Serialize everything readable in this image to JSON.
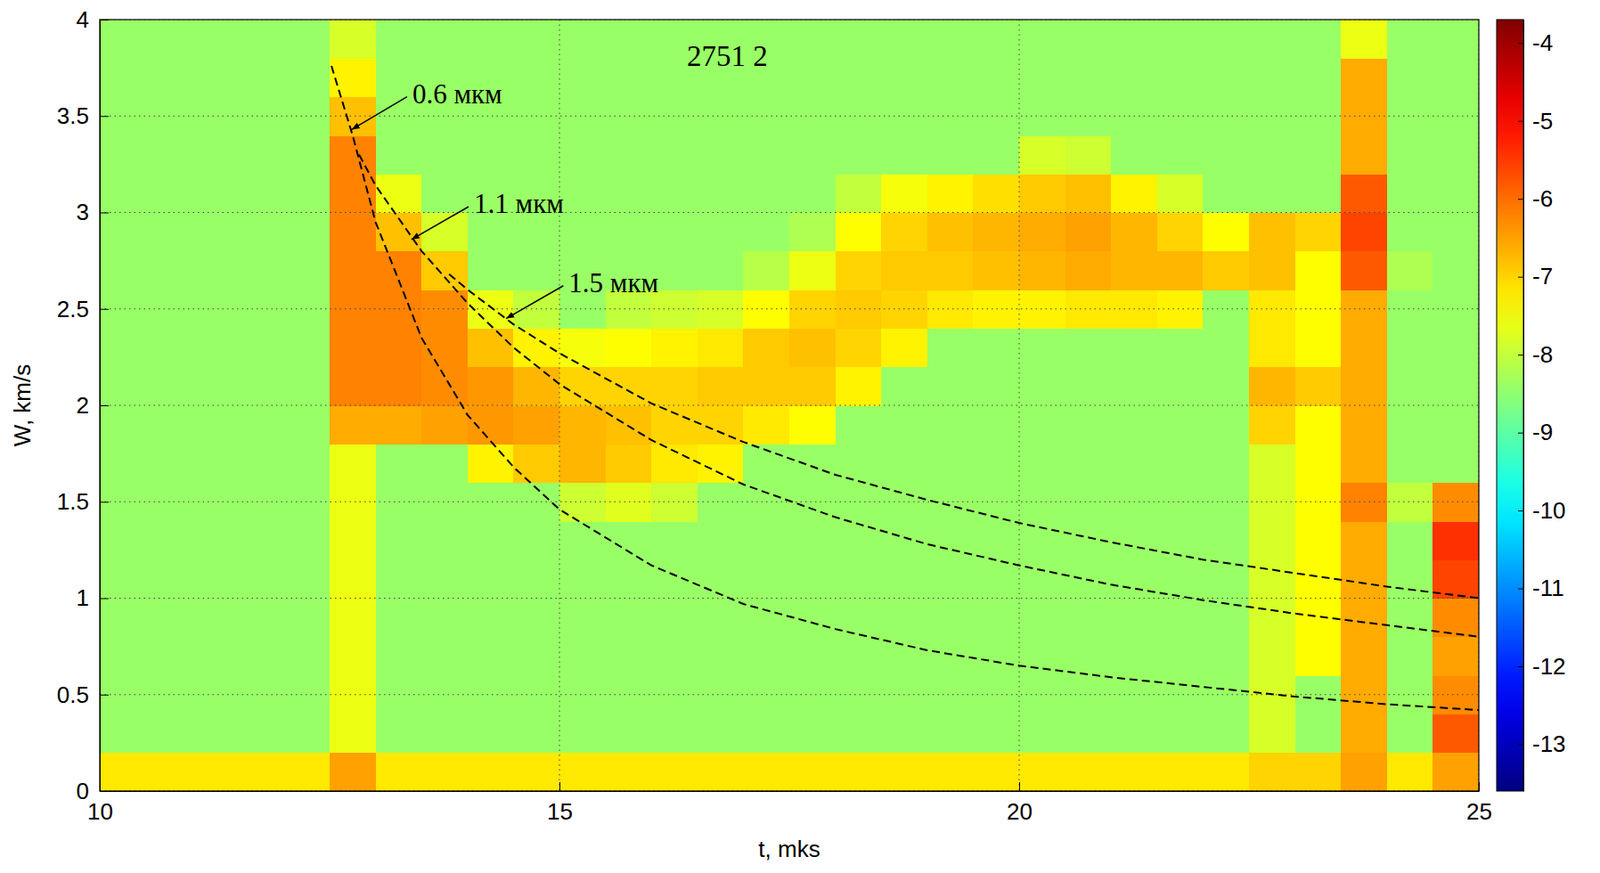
{
  "chart_data": {
    "type": "heatmap",
    "title": "2751 2",
    "x_label": "t, mks",
    "y_label": "W, km/s",
    "xlim": [
      10,
      25
    ],
    "ylim": [
      0,
      4
    ],
    "xticks": [
      10,
      15,
      20,
      25
    ],
    "yticks": [
      0,
      0.5,
      1,
      1.5,
      2,
      2.5,
      3,
      3.5,
      4
    ],
    "grid": true,
    "x": [
      10.25,
      10.75,
      11.25,
      11.75,
      12.25,
      12.75,
      13.25,
      13.75,
      14.25,
      14.75,
      15.25,
      15.75,
      16.25,
      16.75,
      17.25,
      17.75,
      18.25,
      18.75,
      19.25,
      19.75,
      20.25,
      20.75,
      21.25,
      21.75,
      22.25,
      22.75,
      23.25,
      23.75,
      24.25,
      24.75
    ],
    "y": [
      0.1,
      0.3,
      0.5,
      0.7,
      0.9,
      1.1,
      1.3,
      1.5,
      1.7,
      1.9,
      2.1,
      2.3,
      2.5,
      2.7,
      2.9,
      3.1,
      3.3,
      3.5,
      3.7,
      3.9
    ],
    "cells": [
      [
        -7.2,
        -7.2,
        -7.2,
        -7.2,
        -7.2,
        -6.5,
        -7.2,
        -7.2,
        -7.2,
        -7.2,
        -7.2,
        -7.2,
        -7.2,
        -7.2,
        -7.2,
        -7.2,
        -7.2,
        -7.2,
        -7.2,
        -7.2,
        -7.2,
        -7.2,
        -7.2,
        -7.2,
        -7.2,
        -7.0,
        -7.0,
        -6.5,
        -7.2,
        -6.5
      ],
      [
        -8.4,
        -8.4,
        -8.4,
        -8.4,
        -8.4,
        -7.6,
        -8.4,
        -8.4,
        -8.4,
        -8.4,
        -8.4,
        -8.4,
        -8.4,
        -8.4,
        -8.4,
        -8.4,
        -8.4,
        -8.4,
        -8.4,
        -8.4,
        -8.4,
        -8.4,
        -8.4,
        -8.4,
        -8.4,
        -7.8,
        -8.4,
        -6.6,
        -8.4,
        -5.8
      ],
      [
        -8.4,
        -8.4,
        -8.4,
        -8.4,
        -8.4,
        -7.6,
        -8.4,
        -8.4,
        -8.4,
        -8.4,
        -8.4,
        -8.4,
        -8.4,
        -8.4,
        -8.4,
        -8.4,
        -8.4,
        -8.4,
        -8.4,
        -8.4,
        -8.4,
        -8.4,
        -8.4,
        -8.4,
        -8.4,
        -7.8,
        -8.4,
        -6.6,
        -8.4,
        -6.3
      ],
      [
        -8.4,
        -8.4,
        -8.4,
        -8.4,
        -8.4,
        -7.6,
        -8.4,
        -8.4,
        -8.4,
        -8.4,
        -8.4,
        -8.4,
        -8.4,
        -8.4,
        -8.4,
        -8.4,
        -8.4,
        -8.4,
        -8.4,
        -8.4,
        -8.4,
        -8.4,
        -8.4,
        -8.4,
        -8.4,
        -7.8,
        -7.4,
        -6.6,
        -8.4,
        -6.5
      ],
      [
        -8.4,
        -8.4,
        -8.4,
        -8.4,
        -8.4,
        -7.6,
        -8.4,
        -8.4,
        -8.4,
        -8.4,
        -8.4,
        -8.4,
        -8.4,
        -8.4,
        -8.4,
        -8.4,
        -8.4,
        -8.4,
        -8.4,
        -8.4,
        -8.4,
        -8.4,
        -8.4,
        -8.4,
        -8.4,
        -7.8,
        -7.4,
        -6.6,
        -8.4,
        -6.3
      ],
      [
        -8.4,
        -8.4,
        -8.4,
        -8.4,
        -8.4,
        -7.6,
        -8.4,
        -8.4,
        -8.4,
        -8.4,
        -8.4,
        -8.4,
        -8.4,
        -8.4,
        -8.4,
        -8.4,
        -8.4,
        -8.4,
        -8.4,
        -8.4,
        -8.4,
        -8.4,
        -8.4,
        -8.4,
        -8.4,
        -7.8,
        -7.4,
        -6.6,
        -8.4,
        -5.6
      ],
      [
        -8.4,
        -8.4,
        -8.4,
        -8.4,
        -8.4,
        -7.6,
        -8.4,
        -8.4,
        -8.4,
        -8.4,
        -8.4,
        -8.4,
        -8.4,
        -8.4,
        -8.4,
        -8.4,
        -8.4,
        -8.4,
        -8.4,
        -8.4,
        -8.4,
        -8.4,
        -8.4,
        -8.4,
        -8.4,
        -7.8,
        -7.4,
        -6.6,
        -8.4,
        -5.4
      ],
      [
        -8.4,
        -8.4,
        -8.4,
        -8.4,
        -8.4,
        -7.6,
        -8.4,
        -8.4,
        -8.4,
        -8.4,
        -7.9,
        -7.7,
        -7.9,
        -8.4,
        -8.4,
        -8.4,
        -8.4,
        -8.4,
        -8.4,
        -8.4,
        -8.4,
        -8.4,
        -8.4,
        -8.4,
        -8.4,
        -7.8,
        -7.4,
        -6.2,
        -8.0,
        -6.3
      ],
      [
        -8.4,
        -8.4,
        -8.4,
        -8.4,
        -8.4,
        -7.6,
        -8.4,
        -8.4,
        -7.3,
        -6.9,
        -6.7,
        -6.9,
        -7.2,
        -7.3,
        -8.4,
        -8.4,
        -8.4,
        -8.4,
        -8.4,
        -8.4,
        -8.4,
        -8.4,
        -8.4,
        -8.4,
        -8.4,
        -7.8,
        -7.4,
        -6.6,
        -8.4,
        -8.4
      ],
      [
        -8.4,
        -8.4,
        -8.4,
        -8.4,
        -8.4,
        -6.6,
        -6.6,
        -6.5,
        -6.4,
        -6.5,
        -6.7,
        -6.8,
        -7.0,
        -7.0,
        -7.2,
        -7.4,
        -8.4,
        -8.4,
        -8.4,
        -8.4,
        -8.4,
        -8.4,
        -8.4,
        -8.4,
        -8.4,
        -7.0,
        -7.4,
        -6.6,
        -8.4,
        -8.4
      ],
      [
        -8.4,
        -8.4,
        -8.4,
        -8.4,
        -8.4,
        -6.2,
        -6.2,
        -6.3,
        -6.4,
        -6.7,
        -7.0,
        -7.0,
        -7.0,
        -6.9,
        -6.9,
        -6.9,
        -7.3,
        -8.4,
        -8.4,
        -8.4,
        -8.4,
        -8.4,
        -8.4,
        -8.4,
        -8.4,
        -6.7,
        -6.9,
        -6.6,
        -8.4,
        -8.4
      ],
      [
        -8.4,
        -8.4,
        -8.4,
        -8.4,
        -8.4,
        -6.2,
        -6.2,
        -6.3,
        -6.8,
        -7.3,
        -7.5,
        -7.4,
        -7.3,
        -7.2,
        -6.9,
        -6.8,
        -7.0,
        -7.3,
        -8.4,
        -8.4,
        -8.4,
        -8.4,
        -8.4,
        -8.4,
        -8.4,
        -7.2,
        -7.4,
        -6.6,
        -8.4,
        -8.4
      ],
      [
        -8.4,
        -8.4,
        -8.4,
        -8.4,
        -8.4,
        -6.2,
        -6.2,
        -6.3,
        -7.6,
        -8.0,
        -8.4,
        -8.0,
        -7.9,
        -7.8,
        -7.4,
        -7.0,
        -6.9,
        -7.0,
        -7.2,
        -7.3,
        -7.3,
        -7.2,
        -7.2,
        -7.3,
        -8.4,
        -7.2,
        -7.4,
        -6.6,
        -8.4,
        -8.4
      ],
      [
        -8.4,
        -8.4,
        -8.4,
        -8.4,
        -8.4,
        -6.2,
        -6.2,
        -6.9,
        -8.4,
        -8.4,
        -8.4,
        -8.4,
        -8.4,
        -8.4,
        -8.1,
        -7.6,
        -7.0,
        -6.9,
        -6.9,
        -6.8,
        -6.7,
        -6.6,
        -6.7,
        -6.7,
        -6.9,
        -6.8,
        -7.4,
        -5.8,
        -8.2,
        -8.4
      ],
      [
        -8.4,
        -8.4,
        -8.4,
        -8.4,
        -8.4,
        -6.2,
        -6.8,
        -7.8,
        -8.4,
        -8.4,
        -8.4,
        -8.4,
        -8.4,
        -8.4,
        -8.4,
        -8.2,
        -7.4,
        -7.0,
        -6.8,
        -6.7,
        -6.6,
        -6.5,
        -6.7,
        -7.0,
        -7.4,
        -6.8,
        -7.0,
        -5.6,
        -8.4,
        -8.4
      ],
      [
        -8.4,
        -8.4,
        -8.4,
        -8.4,
        -8.4,
        -6.2,
        -7.6,
        -8.4,
        -8.4,
        -8.4,
        -8.4,
        -8.4,
        -8.4,
        -8.4,
        -8.4,
        -8.4,
        -8.0,
        -7.5,
        -7.3,
        -7.1,
        -6.9,
        -6.8,
        -7.3,
        -7.8,
        -8.4,
        -8.4,
        -8.4,
        -5.8,
        -8.4,
        -8.4
      ],
      [
        -8.4,
        -8.4,
        -8.4,
        -8.4,
        -8.4,
        -6.2,
        -8.4,
        -8.4,
        -8.4,
        -8.4,
        -8.4,
        -8.4,
        -8.4,
        -8.4,
        -8.4,
        -8.4,
        -8.4,
        -8.4,
        -8.4,
        -8.4,
        -7.8,
        -7.9,
        -8.4,
        -8.4,
        -8.4,
        -8.4,
        -8.4,
        -6.6,
        -8.4,
        -8.4
      ],
      [
        -8.4,
        -8.4,
        -8.4,
        -8.4,
        -8.4,
        -6.8,
        -8.4,
        -8.4,
        -8.4,
        -8.4,
        -8.4,
        -8.4,
        -8.4,
        -8.4,
        -8.4,
        -8.4,
        -8.4,
        -8.4,
        -8.4,
        -8.4,
        -8.4,
        -8.4,
        -8.4,
        -8.4,
        -8.4,
        -8.4,
        -8.4,
        -6.6,
        -8.4,
        -8.4
      ],
      [
        -8.4,
        -8.4,
        -8.4,
        -8.4,
        -8.4,
        -7.3,
        -8.4,
        -8.4,
        -8.4,
        -8.4,
        -8.4,
        -8.4,
        -8.4,
        -8.4,
        -8.4,
        -8.4,
        -8.4,
        -8.4,
        -8.4,
        -8.4,
        -8.4,
        -8.4,
        -8.4,
        -8.4,
        -8.4,
        -8.4,
        -8.4,
        -6.6,
        -8.4,
        -8.4
      ],
      [
        -8.4,
        -8.4,
        -8.4,
        -8.4,
        -8.4,
        -7.8,
        -8.4,
        -8.4,
        -8.4,
        -8.4,
        -8.4,
        -8.4,
        -8.4,
        -8.4,
        -8.4,
        -8.4,
        -8.4,
        -8.4,
        -8.4,
        -8.4,
        -8.4,
        -8.4,
        -8.4,
        -8.4,
        -8.4,
        -8.4,
        -8.4,
        -7.6,
        -8.4,
        -8.4
      ]
    ],
    "colorbar": {
      "range": [
        -13.6,
        -3.7
      ],
      "ticks": [
        -13,
        -12,
        -11,
        -10,
        -9,
        -8,
        -7,
        -6,
        -5,
        -4
      ]
    },
    "series": [
      {
        "type": "line",
        "color": "#000000",
        "line_style": "dashed",
        "x": [
          12.52,
          12.75,
          13.0,
          13.5,
          14.0,
          14.5,
          15.0,
          16.0,
          17.0,
          18.0,
          19.0,
          20.0,
          21.0,
          22.0,
          23.0,
          24.0,
          25.0
        ],
        "values": [
          3.76,
          3.4,
          2.95,
          2.35,
          1.95,
          1.68,
          1.46,
          1.17,
          0.97,
          0.84,
          0.73,
          0.65,
          0.59,
          0.54,
          0.49,
          0.45,
          0.42
        ]
      },
      {
        "type": "line",
        "color": "#000000",
        "line_style": "dashed",
        "x": [
          12.82,
          13.0,
          13.5,
          14.0,
          14.5,
          15.0,
          16.0,
          17.0,
          18.0,
          19.0,
          20.0,
          21.0,
          22.0,
          23.0,
          24.0,
          25.0
        ],
        "values": [
          3.3,
          3.14,
          2.8,
          2.53,
          2.3,
          2.11,
          1.82,
          1.59,
          1.42,
          1.28,
          1.17,
          1.07,
          0.99,
          0.92,
          0.86,
          0.8
        ]
      },
      {
        "type": "line",
        "color": "#000000",
        "line_style": "dashed",
        "x": [
          13.8,
          14.0,
          14.5,
          15.0,
          16.0,
          17.0,
          18.0,
          19.0,
          20.0,
          21.0,
          22.0,
          23.0,
          24.0,
          25.0
        ],
        "values": [
          2.68,
          2.6,
          2.42,
          2.27,
          2.01,
          1.81,
          1.64,
          1.51,
          1.39,
          1.29,
          1.2,
          1.13,
          1.06,
          1.0
        ]
      }
    ],
    "annotations": [
      {
        "text": "0.6 мкм",
        "x": 13.4,
        "y": 3.6,
        "arrow_x": 12.74,
        "arrow_y": 3.43
      },
      {
        "text": "1.1 мкм",
        "x": 14.07,
        "y": 3.03,
        "arrow_x": 13.39,
        "arrow_y": 2.86
      },
      {
        "text": "1.5 мкм",
        "x": 15.1,
        "y": 2.62,
        "arrow_x": 14.42,
        "arrow_y": 2.45
      }
    ]
  }
}
